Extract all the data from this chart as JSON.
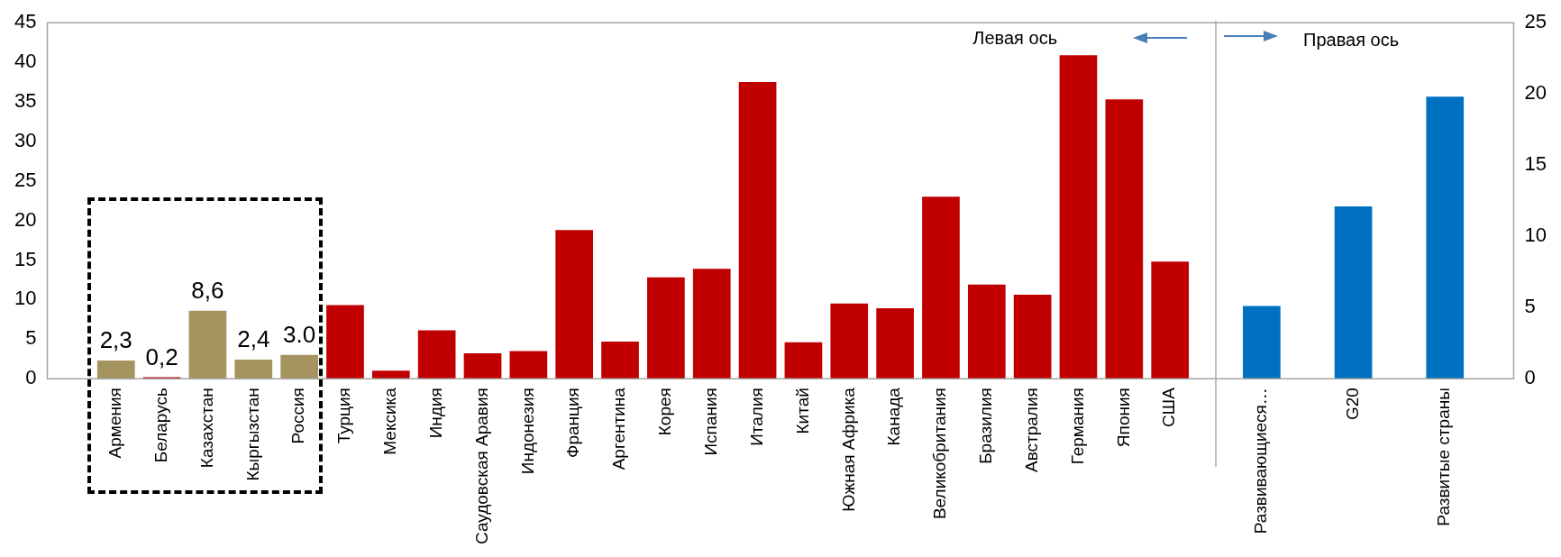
{
  "chart_data": {
    "type": "bar",
    "annotations": [
      "Левая ось",
      "Правая ось"
    ],
    "categories": [
      null,
      "Армения",
      "Беларусь",
      "Казахстан",
      "Кыргызстан",
      "Россия",
      "Турция",
      "Мексика",
      "Индия",
      "Саудовская Аравия",
      "Индонезия",
      "Франция",
      "Аргентина",
      "Корея",
      "Испания",
      "Италия",
      "Китай",
      "Южная Африка",
      "Канада",
      "Великобритания",
      "Бразилия",
      "Австралия",
      "Германия",
      "Япония",
      "США",
      null,
      "Развивающиеся…",
      null,
      "G20",
      null,
      "Развитые страны",
      null
    ],
    "ylim": [
      0,
      45
    ],
    "yticks": [
      0,
      5,
      10,
      15,
      20,
      25,
      30,
      35,
      40,
      45
    ],
    "y2lim": [
      0,
      25
    ],
    "y2ticks": [
      0,
      5,
      10,
      15,
      20,
      25
    ],
    "series": [
      {
        "colors": [
          null,
          "#a59360",
          "#c00000",
          "#a59360",
          "#a59360",
          "#a59360",
          "#c00000",
          "#c00000",
          "#c00000",
          "#c00000",
          "#c00000",
          "#c00000",
          "#c00000",
          "#c00000",
          "#c00000",
          "#c00000",
          "#c00000",
          "#c00000",
          "#c00000",
          "#c00000",
          "#c00000",
          "#c00000",
          "#c00000",
          "#c00000",
          "#c00000",
          null,
          null,
          null,
          null,
          null,
          null,
          null
        ],
        "values": [
          null,
          2.3,
          0.2,
          8.6,
          2.4,
          3.0,
          9.3,
          1.0,
          6.1,
          3.2,
          3.5,
          18.8,
          4.7,
          12.8,
          13.9,
          37.5,
          4.6,
          9.5,
          8.9,
          23.0,
          11.9,
          10.6,
          40.9,
          35.3,
          14.8,
          null,
          null,
          null,
          null,
          null,
          null,
          null
        ],
        "value_labels": [
          null,
          "2,3",
          "0,2",
          "8,6",
          "2,4",
          "3.0",
          null,
          null,
          null,
          null,
          null,
          null,
          null,
          null,
          null,
          null,
          null,
          null,
          null,
          null,
          null,
          null,
          null,
          null,
          null,
          null,
          null,
          null,
          null,
          null,
          null,
          null
        ]
      },
      {
        "axis": "y2",
        "color": "#0070c0",
        "values": [
          null,
          null,
          null,
          null,
          null,
          null,
          null,
          null,
          null,
          null,
          null,
          null,
          null,
          null,
          null,
          null,
          null,
          null,
          null,
          null,
          null,
          null,
          null,
          null,
          null,
          null,
          5.1,
          null,
          12.1,
          null,
          19.8,
          null
        ]
      }
    ]
  }
}
